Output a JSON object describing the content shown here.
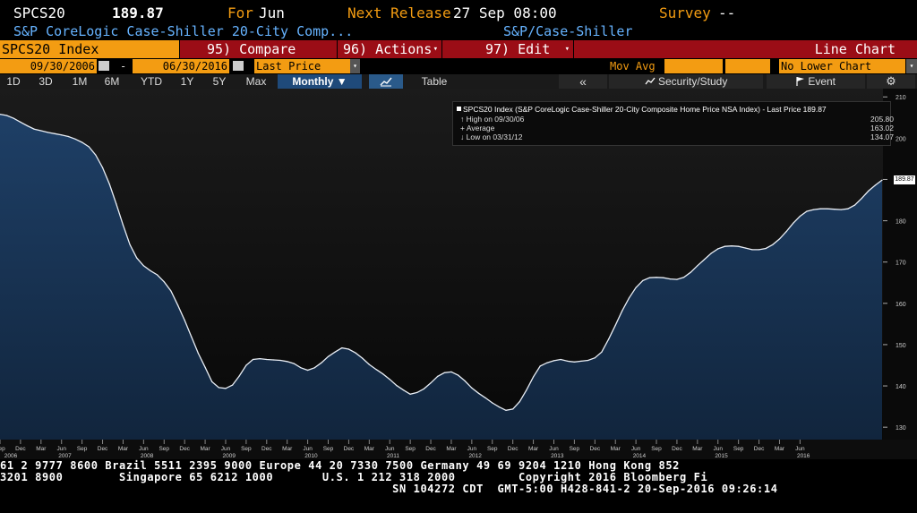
{
  "header": {
    "ticker": "SPCS20",
    "price": "189.87",
    "for_label": "For",
    "for_value": "Jun",
    "next_release_label": "Next Release",
    "next_release_value": "27 Sep 08:00",
    "survey_label": "Survey",
    "survey_value": "--",
    "description": "S&P CoreLogic Case-Shiller 20-City Comp...",
    "source": "S&P/Case-Shiller"
  },
  "menu": {
    "security": "SPCS20 Index",
    "compare": "95) Compare",
    "actions": "96) Actions",
    "edit": "97) Edit",
    "chart_type": "Line Chart"
  },
  "range_bar": {
    "start_date": "09/30/2006",
    "dash": "-",
    "end_date": "06/30/2016",
    "price_field": "Last Price",
    "mov_avg_label": "Mov Avg",
    "lower_chart": "No Lower Chart"
  },
  "toolbar": {
    "periods": [
      "1D",
      "3D",
      "1M",
      "6M",
      "YTD",
      "1Y",
      "5Y",
      "Max"
    ],
    "frequency": "Monthly ▼",
    "table_label": "Table",
    "collapse_symbol": "«",
    "security_study": "Security/Study",
    "event": "Event",
    "settings_symbol": "⚙"
  },
  "legend": {
    "title": "SPCS20 Index (S&P CoreLogic Case-Shiller 20-City Composite Home Price NSA Index) - Last Price 189.87",
    "high_label": "High on 09/30/06",
    "high_value": "205.80",
    "average_label": "Average",
    "average_value": "163.02",
    "low_label": "Low on 03/31/12",
    "low_value": "134.07"
  },
  "last_price_tag": "189.87",
  "ticker_lines": [
    "61 2 9777 8600 Brazil 5511 2395 9000 Europe 44 20 7330 7500 Germany 49 69 9204 1210 Hong Kong 852",
    "3201 8900        Singapore 65 6212 1000       U.S. 1 212 318 2000         Copyright 2016 Bloomberg Fi",
    "                                                        SN 104272 CDT  GMT-5:00 H428-841-2 20-Sep-2016 09:26:14"
  ],
  "colors": {
    "accent_orange": "#f39c12",
    "menu_red": "#9b0d16",
    "series_fill": "#1d3a5c",
    "series_line": "#e9eef5",
    "link_blue": "#66b3ff"
  },
  "chart_data": {
    "type": "area",
    "title": "",
    "xlabel": "",
    "ylabel": "",
    "ylim": [
      127,
      212
    ],
    "y_ticks": [
      130,
      140,
      150,
      160,
      170,
      180,
      190,
      200,
      210
    ],
    "x_axis_months": [
      "Sep",
      "Dec",
      "Mar",
      "Jun",
      "Sep",
      "Dec",
      "Mar",
      "Jun",
      "Sep",
      "Dec",
      "Mar",
      "Jun",
      "Sep",
      "Dec",
      "Mar",
      "Jun",
      "Sep",
      "Dec",
      "Mar",
      "Jun",
      "Sep",
      "Dec",
      "Mar",
      "Jun",
      "Sep",
      "Dec",
      "Mar",
      "Jun",
      "Sep",
      "Dec",
      "Mar",
      "Jun",
      "Sep",
      "Dec",
      "Mar",
      "Jun",
      "Sep",
      "Dec",
      "Mar",
      "Jun"
    ],
    "x_axis_years": [
      "2006",
      "2007",
      "2008",
      "2009",
      "2010",
      "2011",
      "2012",
      "2013",
      "2014",
      "2015",
      "2016"
    ],
    "x_start": "2006-09",
    "x_end": "2016-06",
    "series": [
      {
        "values": [
          205.8,
          205.5,
          204.8,
          203.9,
          203.0,
          202.2,
          201.8,
          201.4,
          201.1,
          200.8,
          200.4,
          199.8,
          199.0,
          197.9,
          195.9,
          192.9,
          188.9,
          184.1,
          179.0,
          174.2,
          171.0,
          169.1,
          167.9,
          166.9,
          165.2,
          163.0,
          159.6,
          155.9,
          151.9,
          147.9,
          144.5,
          141.0,
          139.6,
          139.4,
          140.2,
          142.4,
          145.0,
          146.4,
          146.6,
          146.4,
          146.3,
          146.2,
          145.9,
          145.4,
          144.4,
          143.8,
          144.4,
          145.6,
          147.1,
          148.2,
          149.2,
          148.9,
          148.0,
          146.7,
          145.2,
          144.0,
          142.9,
          141.6,
          140.1,
          139.0,
          138.0,
          138.4,
          139.3,
          140.7,
          142.3,
          143.2,
          143.4,
          142.6,
          141.2,
          139.5,
          138.2,
          137.1,
          135.9,
          134.9,
          134.1,
          134.4,
          136.2,
          139.0,
          142.2,
          144.8,
          145.6,
          146.1,
          146.4,
          146.0,
          145.8,
          146.0,
          146.2,
          146.8,
          148.2,
          151.3,
          154.7,
          158.2,
          161.3,
          163.8,
          165.5,
          166.2,
          166.3,
          166.2,
          165.9,
          165.8,
          166.3,
          167.5,
          169.1,
          170.6,
          172.1,
          173.2,
          173.8,
          173.9,
          173.8,
          173.4,
          173.0,
          173.0,
          173.3,
          174.2,
          175.6,
          177.4,
          179.4,
          181.1,
          182.3,
          182.7,
          182.9,
          182.9,
          182.8,
          182.7,
          182.9,
          183.8,
          185.4,
          187.2,
          188.6,
          189.87
        ]
      }
    ],
    "last_value": 189.87,
    "grid": false,
    "legend_position": "top-right"
  }
}
